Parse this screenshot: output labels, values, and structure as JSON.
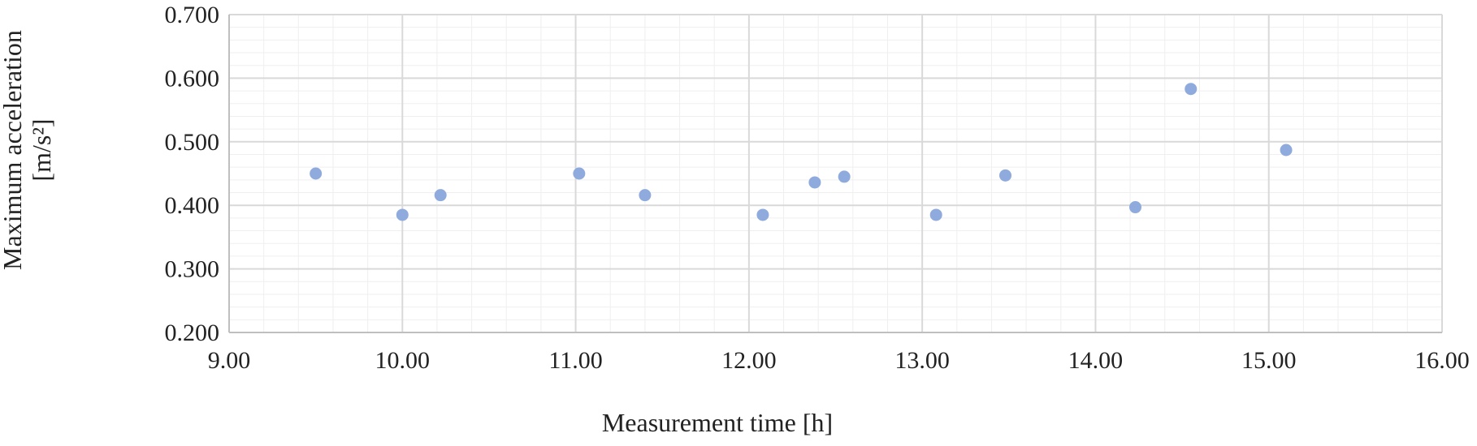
{
  "chart_data": {
    "type": "scatter",
    "xlabel": "Measurement time [h]",
    "ylabel_line1": "Maximum acceleration",
    "ylabel_line2": "[m/s²]",
    "xlim": [
      9.0,
      16.0
    ],
    "ylim": [
      0.2,
      0.7
    ],
    "x_ticks": [
      "9.00",
      "10.00",
      "11.00",
      "12.00",
      "13.00",
      "14.00",
      "15.00",
      "16.00"
    ],
    "y_ticks": [
      "0.200",
      "0.300",
      "0.400",
      "0.500",
      "0.600",
      "0.700"
    ],
    "grid": true,
    "legend": "none",
    "marker_color": "#8faadc",
    "points": [
      {
        "x": 9.5,
        "y": 0.45
      },
      {
        "x": 10.0,
        "y": 0.385
      },
      {
        "x": 10.22,
        "y": 0.416
      },
      {
        "x": 11.02,
        "y": 0.45
      },
      {
        "x": 11.4,
        "y": 0.416
      },
      {
        "x": 12.08,
        "y": 0.385
      },
      {
        "x": 12.38,
        "y": 0.436
      },
      {
        "x": 12.55,
        "y": 0.445
      },
      {
        "x": 13.08,
        "y": 0.385
      },
      {
        "x": 13.48,
        "y": 0.447
      },
      {
        "x": 14.23,
        "y": 0.397
      },
      {
        "x": 14.55,
        "y": 0.583
      },
      {
        "x": 15.1,
        "y": 0.487
      }
    ]
  }
}
